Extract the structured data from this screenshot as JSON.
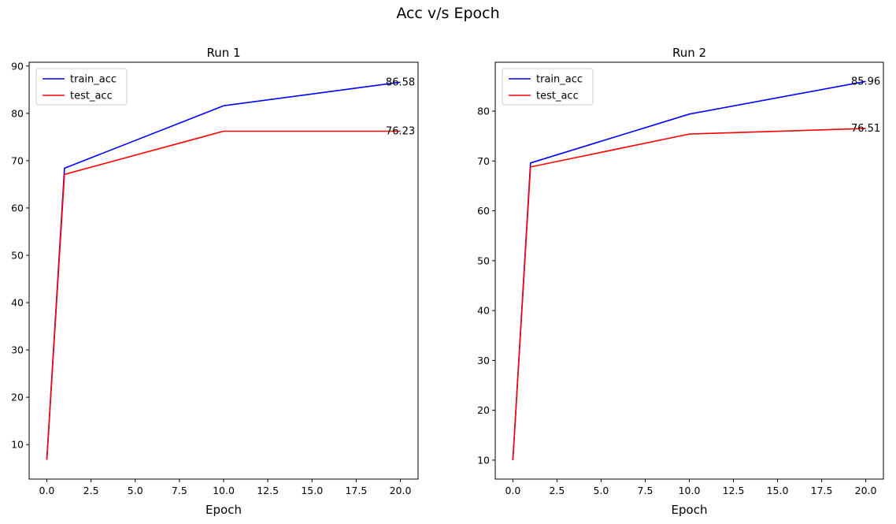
{
  "figure": {
    "suptitle": "Acc v/s Epoch"
  },
  "chart_data": [
    {
      "type": "line",
      "title": "Run 1",
      "xlabel": "Epoch",
      "ylabel": "",
      "xlim": [
        -1,
        21
      ],
      "ylim": [
        2.7,
        90.8
      ],
      "xticks": [
        0.0,
        2.5,
        5.0,
        7.5,
        10.0,
        12.5,
        15.0,
        17.5,
        20.0
      ],
      "xtick_labels": [
        "0.0",
        "2.5",
        "5.0",
        "7.5",
        "10.0",
        "12.5",
        "15.0",
        "17.5",
        "20.0"
      ],
      "yticks": [
        10,
        20,
        30,
        40,
        50,
        60,
        70,
        80,
        90
      ],
      "ytick_labels": [
        "10",
        "20",
        "30",
        "40",
        "50",
        "60",
        "70",
        "80",
        "90"
      ],
      "legend": "top-left",
      "grid": false,
      "series": [
        {
          "name": "train_acc",
          "color": "#0000ff",
          "x": [
            0,
            1,
            10,
            20
          ],
          "y": [
            6.8,
            68.4,
            81.6,
            86.58
          ]
        },
        {
          "name": "test_acc",
          "color": "#ff0000",
          "x": [
            0,
            1,
            10,
            20
          ],
          "y": [
            6.8,
            67.1,
            76.23,
            76.23
          ]
        }
      ],
      "annotations": [
        {
          "x": 20,
          "y": 86.58,
          "text": "86.58"
        },
        {
          "x": 20,
          "y": 76.23,
          "text": "76.23"
        }
      ]
    },
    {
      "type": "line",
      "title": "Run 2",
      "xlabel": "Epoch",
      "ylabel": "",
      "xlim": [
        -1,
        21
      ],
      "ylim": [
        6.2,
        89.8
      ],
      "xticks": [
        0.0,
        2.5,
        5.0,
        7.5,
        10.0,
        12.5,
        15.0,
        17.5,
        20.0
      ],
      "xtick_labels": [
        "0.0",
        "2.5",
        "5.0",
        "7.5",
        "10.0",
        "12.5",
        "15.0",
        "17.5",
        "20.0"
      ],
      "yticks": [
        10,
        20,
        30,
        40,
        50,
        60,
        70,
        80
      ],
      "ytick_labels": [
        "10",
        "20",
        "30",
        "40",
        "50",
        "60",
        "70",
        "80"
      ],
      "legend": "top-left",
      "grid": false,
      "series": [
        {
          "name": "train_acc",
          "color": "#0000ff",
          "x": [
            0,
            1,
            10,
            20
          ],
          "y": [
            10.0,
            69.6,
            79.4,
            85.96
          ]
        },
        {
          "name": "test_acc",
          "color": "#ff0000",
          "x": [
            0,
            1,
            10,
            20
          ],
          "y": [
            10.0,
            68.8,
            75.4,
            76.51
          ]
        }
      ],
      "annotations": [
        {
          "x": 20,
          "y": 85.96,
          "text": "85.96"
        },
        {
          "x": 20,
          "y": 76.51,
          "text": "76.51"
        }
      ]
    }
  ]
}
